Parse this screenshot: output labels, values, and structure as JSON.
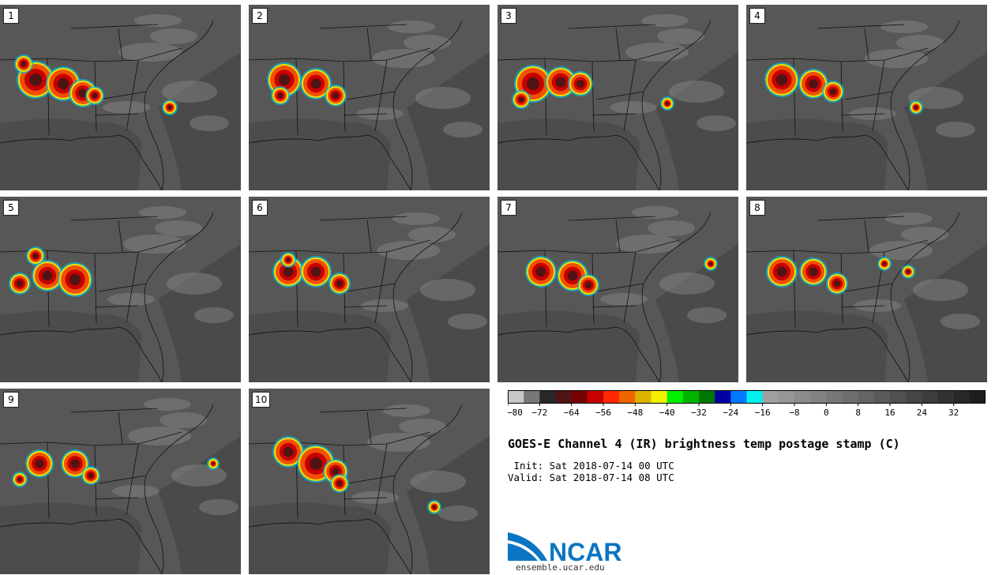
{
  "panels": [
    {
      "label": "1"
    },
    {
      "label": "2"
    },
    {
      "label": "3"
    },
    {
      "label": "4"
    },
    {
      "label": "5"
    },
    {
      "label": "6"
    },
    {
      "label": "7"
    },
    {
      "label": "8"
    },
    {
      "label": "9"
    },
    {
      "label": "10"
    }
  ],
  "colorbar": {
    "colors": [
      "#c8c8c8",
      "#787878",
      "#282828",
      "#501414",
      "#780000",
      "#c80000",
      "#ff2800",
      "#f06400",
      "#dcb400",
      "#f0f000",
      "#00f000",
      "#00b400",
      "#007800",
      "#0000a0",
      "#0078ff",
      "#00f0f0",
      "#a0a0a0",
      "#969696",
      "#8c8c8c",
      "#828282",
      "#787878",
      "#6e6e6e",
      "#646464",
      "#5a5a5a",
      "#505050",
      "#464646",
      "#3c3c3c",
      "#323232",
      "#282828",
      "#1e1e1e"
    ],
    "ticks": [
      "−80",
      "−72",
      "−64",
      "−56",
      "−48",
      "−40",
      "−32",
      "−24",
      "−16",
      "−8",
      "0",
      "8",
      "16",
      "24",
      "32"
    ]
  },
  "title": "GOES-E Channel 4 (IR) brightness temp postage stamp (C)",
  "init": " Init: Sat 2018-07-14 00 UTC",
  "valid": "Valid: Sat 2018-07-14 08 UTC",
  "logo": {
    "text": "NCAR",
    "url": "ensemble.ucar.edu",
    "color": "#0a75c2"
  }
}
